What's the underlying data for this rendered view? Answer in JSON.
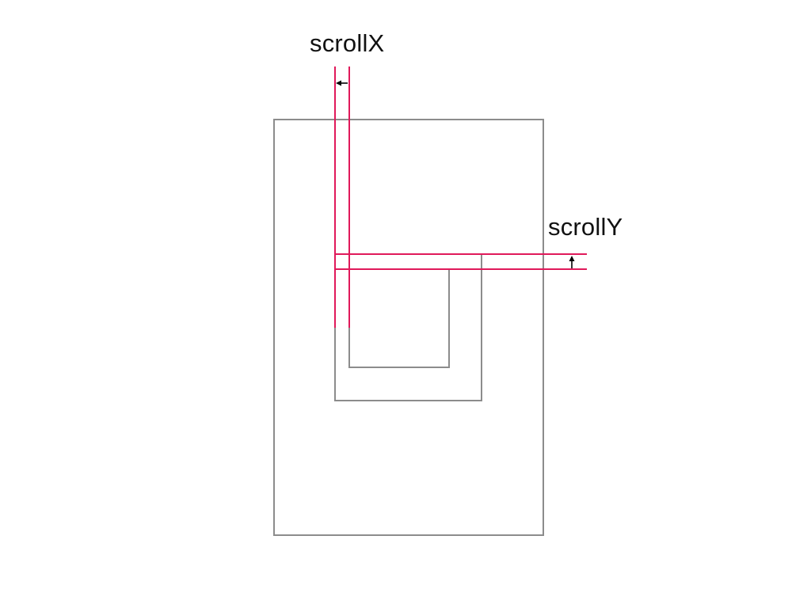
{
  "diagram": {
    "labels": {
      "scroll_x": "scrollX",
      "scroll_y": "scrollY"
    },
    "colors": {
      "frame": "#8c8c8c",
      "guide": "#e0195a",
      "arrow": "#000000",
      "text": "#111111",
      "background": "#ffffff"
    }
  }
}
